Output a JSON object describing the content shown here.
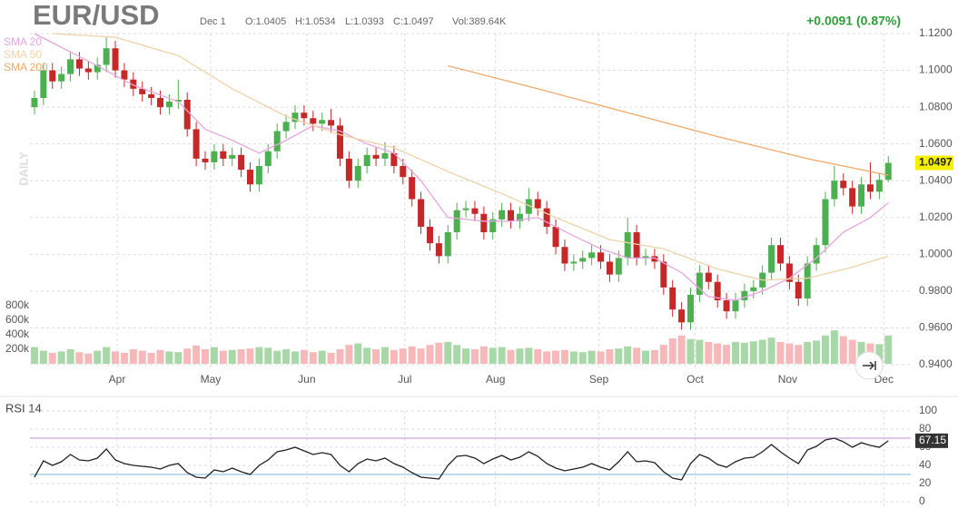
{
  "header": {
    "symbol": "EUR/USD",
    "date": "Dec 1",
    "open": "O:1.0405",
    "high": "H:1.0534",
    "low": "L:1.0393",
    "close": "C:1.0497",
    "volume": "Vol:389.64K",
    "change": "+0.0091 (0.87%)",
    "interval": "DAILY"
  },
  "chart_data": [
    {
      "type": "candlestick",
      "up_color": "#4caf50",
      "down_color": "#c62828",
      "last_label": "1.0497",
      "ylim": [
        0.94,
        1.12
      ],
      "yticks": [
        {
          "value": 1.12,
          "label": "1.1200"
        },
        {
          "value": 1.1,
          "label": "1.1000"
        },
        {
          "value": 1.08,
          "label": "1.0800"
        },
        {
          "value": 1.06,
          "label": "1.0600"
        },
        {
          "value": 1.04,
          "label": "1.0400"
        },
        {
          "value": 1.02,
          "label": "1.0200"
        },
        {
          "value": 1.0,
          "label": "1.0000"
        },
        {
          "value": 0.98,
          "label": "0.9800"
        },
        {
          "value": 0.96,
          "label": "0.9600"
        },
        {
          "value": 0.94,
          "label": "0.9400"
        }
      ],
      "xlim": [
        -0.5,
        97.5
      ],
      "xticks": [
        {
          "value": 9.2,
          "label": "Apr"
        },
        {
          "value": 19.6,
          "label": "May"
        },
        {
          "value": 30.3,
          "label": "Jun"
        },
        {
          "value": 41.2,
          "label": "Jul"
        },
        {
          "value": 51.3,
          "label": "Aug"
        },
        {
          "value": 62.8,
          "label": "Sep"
        },
        {
          "value": 73.5,
          "label": "Oct"
        },
        {
          "value": 83.8,
          "label": "Nov"
        },
        {
          "value": 94.5,
          "label": "Dec"
        }
      ],
      "grid": true,
      "candles": [
        [
          1.08,
          1.089,
          1.076,
          1.085
        ],
        [
          1.085,
          1.104,
          1.081,
          1.1
        ],
        [
          1.1,
          1.104,
          1.09,
          1.094
        ],
        [
          1.094,
          1.102,
          1.09,
          1.098
        ],
        [
          1.098,
          1.11,
          1.094,
          1.106
        ],
        [
          1.106,
          1.11,
          1.097,
          1.101
        ],
        [
          1.101,
          1.105,
          1.095,
          1.099
        ],
        [
          1.099,
          1.107,
          1.095,
          1.103
        ],
        [
          1.103,
          1.118,
          1.099,
          1.112
        ],
        [
          1.112,
          1.116,
          1.096,
          1.1
        ],
        [
          1.1,
          1.104,
          1.091,
          1.095
        ],
        [
          1.095,
          1.099,
          1.086,
          1.09
        ],
        [
          1.09,
          1.094,
          1.083,
          1.087
        ],
        [
          1.087,
          1.091,
          1.081,
          1.085
        ],
        [
          1.085,
          1.089,
          1.076,
          1.08
        ],
        [
          1.08,
          1.087,
          1.076,
          1.083
        ],
        [
          1.083,
          1.095,
          1.079,
          1.084
        ],
        [
          1.084,
          1.088,
          1.064,
          1.068
        ],
        [
          1.068,
          1.072,
          1.048,
          1.052
        ],
        [
          1.052,
          1.056,
          1.046,
          1.05
        ],
        [
          1.05,
          1.06,
          1.046,
          1.056
        ],
        [
          1.056,
          1.06,
          1.048,
          1.052
        ],
        [
          1.052,
          1.058,
          1.048,
          1.054
        ],
        [
          1.054,
          1.058,
          1.042,
          1.046
        ],
        [
          1.046,
          1.05,
          1.034,
          1.038
        ],
        [
          1.038,
          1.052,
          1.034,
          1.048
        ],
        [
          1.048,
          1.06,
          1.044,
          1.056
        ],
        [
          1.056,
          1.071,
          1.052,
          1.067
        ],
        [
          1.067,
          1.076,
          1.063,
          1.072
        ],
        [
          1.072,
          1.081,
          1.068,
          1.077
        ],
        [
          1.077,
          1.081,
          1.07,
          1.074
        ],
        [
          1.074,
          1.078,
          1.067,
          1.071
        ],
        [
          1.071,
          1.077,
          1.067,
          1.073
        ],
        [
          1.073,
          1.079,
          1.066,
          1.07
        ],
        [
          1.07,
          1.074,
          1.048,
          1.052
        ],
        [
          1.052,
          1.056,
          1.036,
          1.04
        ],
        [
          1.04,
          1.052,
          1.036,
          1.048
        ],
        [
          1.048,
          1.058,
          1.044,
          1.054
        ],
        [
          1.054,
          1.058,
          1.048,
          1.052
        ],
        [
          1.052,
          1.061,
          1.048,
          1.055
        ],
        [
          1.055,
          1.059,
          1.044,
          1.048
        ],
        [
          1.048,
          1.052,
          1.038,
          1.042
        ],
        [
          1.042,
          1.046,
          1.026,
          1.03
        ],
        [
          1.03,
          1.034,
          1.011,
          1.015
        ],
        [
          1.015,
          1.019,
          1.002,
          1.006
        ],
        [
          1.006,
          1.01,
          0.995,
          0.999
        ],
        [
          0.999,
          1.016,
          0.995,
          1.012
        ],
        [
          1.012,
          1.028,
          1.008,
          1.024
        ],
        [
          1.024,
          1.029,
          1.02,
          1.025
        ],
        [
          1.025,
          1.029,
          1.018,
          1.022
        ],
        [
          1.022,
          1.026,
          1.008,
          1.012
        ],
        [
          1.012,
          1.023,
          1.008,
          1.019
        ],
        [
          1.019,
          1.028,
          1.015,
          1.024
        ],
        [
          1.024,
          1.028,
          1.014,
          1.018
        ],
        [
          1.018,
          1.026,
          1.014,
          1.022
        ],
        [
          1.022,
          1.036,
          1.018,
          1.03
        ],
        [
          1.03,
          1.034,
          1.021,
          1.025
        ],
        [
          1.025,
          1.029,
          1.011,
          1.015
        ],
        [
          1.015,
          1.019,
          1.0,
          1.004
        ],
        [
          1.004,
          1.008,
          0.991,
          0.995
        ],
        [
          0.995,
          1.0,
          0.991,
          0.996
        ],
        [
          0.996,
          1.002,
          0.992,
          0.998
        ],
        [
          0.998,
          1.005,
          0.994,
          1.001
        ],
        [
          1.001,
          1.005,
          0.992,
          0.996
        ],
        [
          0.996,
          1.0,
          0.985,
          0.989
        ],
        [
          0.989,
          1.002,
          0.985,
          0.998
        ],
        [
          0.998,
          1.02,
          0.994,
          1.012
        ],
        [
          1.012,
          1.016,
          0.994,
          0.998
        ],
        [
          0.998,
          1.003,
          0.994,
          0.999
        ],
        [
          0.999,
          1.003,
          0.992,
          0.996
        ],
        [
          0.996,
          1.0,
          0.978,
          0.982
        ],
        [
          0.982,
          0.986,
          0.966,
          0.97
        ],
        [
          0.97,
          0.974,
          0.959,
          0.963
        ],
        [
          0.963,
          0.982,
          0.959,
          0.978
        ],
        [
          0.978,
          0.994,
          0.974,
          0.99
        ],
        [
          0.99,
          0.994,
          0.981,
          0.985
        ],
        [
          0.985,
          0.989,
          0.971,
          0.975
        ],
        [
          0.975,
          0.979,
          0.965,
          0.969
        ],
        [
          0.969,
          0.979,
          0.965,
          0.975
        ],
        [
          0.975,
          0.984,
          0.971,
          0.98
        ],
        [
          0.98,
          0.986,
          0.976,
          0.982
        ],
        [
          0.982,
          0.994,
          0.978,
          0.99
        ],
        [
          0.99,
          1.009,
          0.986,
          1.005
        ],
        [
          1.005,
          1.009,
          0.991,
          0.995
        ],
        [
          0.995,
          0.999,
          0.981,
          0.985
        ],
        [
          0.985,
          0.989,
          0.972,
          0.976
        ],
        [
          0.976,
          0.999,
          0.972,
          0.995
        ],
        [
          0.995,
          1.009,
          0.991,
          1.005
        ],
        [
          1.005,
          1.034,
          1.001,
          1.03
        ],
        [
          1.03,
          1.048,
          1.026,
          1.04
        ],
        [
          1.04,
          1.044,
          1.032,
          1.036
        ],
        [
          1.036,
          1.04,
          1.022,
          1.026
        ],
        [
          1.026,
          1.042,
          1.022,
          1.038
        ],
        [
          1.038,
          1.05,
          1.03,
          1.034
        ],
        [
          1.034,
          1.044,
          1.03,
          1.0405
        ],
        [
          1.0405,
          1.0534,
          1.0393,
          1.0497
        ]
      ],
      "series": [
        {
          "name": "SMA 20",
          "color": "#e6a6e0",
          "x": [
            0,
            6,
            11,
            16,
            19,
            22,
            25,
            28,
            31,
            34,
            37,
            40,
            43,
            46,
            50,
            53,
            56,
            60,
            63,
            66,
            69,
            72,
            75,
            78,
            81,
            84,
            87,
            90,
            93,
            95
          ],
          "values": [
            1.12,
            1.105,
            1.092,
            1.083,
            1.068,
            1.062,
            1.055,
            1.062,
            1.07,
            1.067,
            1.06,
            1.055,
            1.04,
            1.02,
            1.018,
            1.018,
            1.02,
            1.01,
            1.003,
            0.998,
            0.998,
            0.99,
            0.977,
            0.975,
            0.98,
            0.987,
            0.998,
            1.012,
            1.02,
            1.028
          ]
        },
        {
          "name": "SMA 50",
          "color": "#efd3a8",
          "x": [
            2,
            9,
            16,
            22,
            28,
            34,
            40,
            46,
            52,
            58,
            64,
            70,
            76,
            81,
            86,
            91,
            95
          ],
          "values": [
            1.12,
            1.118,
            1.108,
            1.09,
            1.075,
            1.065,
            1.058,
            1.045,
            1.033,
            1.02,
            1.008,
            1.003,
            0.992,
            0.986,
            0.987,
            0.993,
            0.999
          ]
        },
        {
          "name": "SMA 200",
          "color": "#f0a868",
          "x": [
            46,
            56,
            66,
            76,
            86,
            95
          ],
          "values": [
            1.1025,
            1.09,
            1.077,
            1.064,
            1.052,
            1.043
          ]
        }
      ]
    },
    {
      "type": "volume",
      "ylim": [
        0,
        800000
      ],
      "yticks": [
        {
          "value": 800000,
          "label": "800k"
        },
        {
          "value": 600000,
          "label": "600k"
        },
        {
          "value": 400000,
          "label": "400k"
        },
        {
          "value": 200000,
          "label": "200k"
        }
      ],
      "up_color": "#a8d8a8",
      "down_color": "#f6b8b8",
      "values": [
        230000,
        180000,
        150000,
        170000,
        200000,
        160000,
        140000,
        180000,
        230000,
        170000,
        150000,
        200000,
        180000,
        150000,
        190000,
        170000,
        160000,
        210000,
        250000,
        200000,
        230000,
        180000,
        190000,
        200000,
        210000,
        230000,
        220000,
        180000,
        200000,
        170000,
        190000,
        160000,
        180000,
        150000,
        200000,
        260000,
        280000,
        220000,
        200000,
        230000,
        190000,
        210000,
        240000,
        210000,
        260000,
        290000,
        300000,
        260000,
        210000,
        200000,
        240000,
        220000,
        230000,
        190000,
        210000,
        220000,
        200000,
        170000,
        180000,
        190000,
        170000,
        160000,
        180000,
        170000,
        200000,
        210000,
        240000,
        220000,
        180000,
        190000,
        260000,
        350000,
        390000,
        340000,
        330000,
        300000,
        280000,
        260000,
        300000,
        290000,
        310000,
        330000,
        360000,
        300000,
        280000,
        260000,
        300000,
        320000,
        390000,
        460000,
        380000,
        330000,
        300000,
        280000,
        270000,
        389640
      ]
    },
    {
      "type": "line",
      "title": "RSI 14",
      "color": "#222",
      "ylim": [
        0,
        100
      ],
      "yticks": [
        100,
        80,
        60,
        40,
        20,
        0
      ],
      "levels": [
        {
          "value": 70,
          "color": "#c58fd0"
        },
        {
          "value": 30,
          "color": "#7fb8d6"
        }
      ],
      "values": [
        27,
        45,
        40,
        44,
        52,
        46,
        45,
        48,
        58,
        46,
        42,
        40,
        39,
        38,
        36,
        40,
        42,
        32,
        27,
        26,
        35,
        33,
        37,
        33,
        30,
        40,
        46,
        55,
        57,
        60,
        56,
        52,
        54,
        52,
        40,
        33,
        42,
        47,
        45,
        48,
        42,
        38,
        32,
        27,
        26,
        25,
        40,
        50,
        51,
        48,
        42,
        47,
        51,
        46,
        49,
        55,
        50,
        42,
        37,
        34,
        36,
        38,
        42,
        38,
        35,
        44,
        55,
        44,
        45,
        43,
        33,
        26,
        24,
        42,
        52,
        48,
        41,
        38,
        44,
        48,
        49,
        55,
        63,
        55,
        48,
        42,
        57,
        61,
        68,
        70,
        66,
        60,
        65,
        62,
        60,
        67.15
      ]
    }
  ]
}
